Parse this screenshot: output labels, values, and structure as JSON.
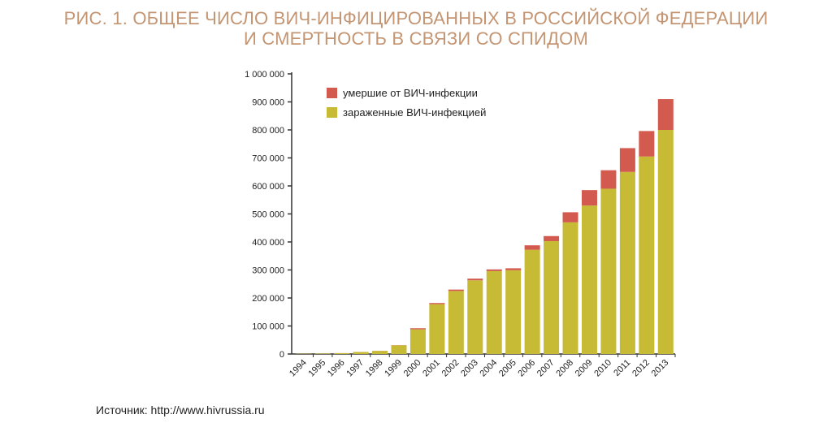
{
  "colors": {
    "title": "#c49572",
    "infected": "#c7bb36",
    "deaths": "#d35a4e",
    "axis": "#333333"
  },
  "source_text": "Источник: http://www.hivrussia.ru",
  "chart_data": {
    "type": "bar",
    "stacked": true,
    "title": "РИС. 1. ОБЩЕЕ ЧИСЛО ВИЧ-ИНФИЦИРОВАННЫХ В РОССИЙСКОЙ ФЕДЕРАЦИИ",
    "subtitle": "И СМЕРТНОСТЬ В СВЯЗИ СО СПИДОМ",
    "xlabel": "",
    "ylabel": "",
    "ylim": [
      0,
      1000000
    ],
    "yticks": [
      0,
      100000,
      200000,
      300000,
      400000,
      500000,
      600000,
      700000,
      800000,
      900000,
      1000000
    ],
    "ytick_labels": [
      "0",
      "100 000",
      "200 000",
      "300 000",
      "400 000",
      "500 000",
      "600 000",
      "700 000",
      "800 000",
      "900 000",
      "1 000 000"
    ],
    "grid": false,
    "legend_position": "top-left",
    "categories": [
      "1994",
      "1995",
      "1996",
      "1997",
      "1998",
      "1999",
      "2000",
      "2001",
      "2002",
      "2003",
      "2004",
      "2005",
      "2006",
      "2007",
      "2008",
      "2009",
      "2010",
      "2011",
      "2012",
      "2013"
    ],
    "series": [
      {
        "name": "зараженные ВИЧ-инфекцией",
        "color": "#c7bb36",
        "values": [
          1000,
          1500,
          3000,
          7000,
          11000,
          31000,
          88000,
          178000,
          225000,
          263000,
          296000,
          299000,
          372000,
          403000,
          470000,
          530000,
          590000,
          650000,
          705000,
          800000
        ]
      },
      {
        "name": "умершие от ВИЧ-инфекции",
        "color": "#d35a4e",
        "values": [
          100,
          100,
          200,
          300,
          400,
          600,
          4000,
          4000,
          5000,
          6000,
          6000,
          7000,
          16000,
          18000,
          36000,
          55000,
          66000,
          85000,
          91000,
          110000
        ]
      }
    ]
  }
}
